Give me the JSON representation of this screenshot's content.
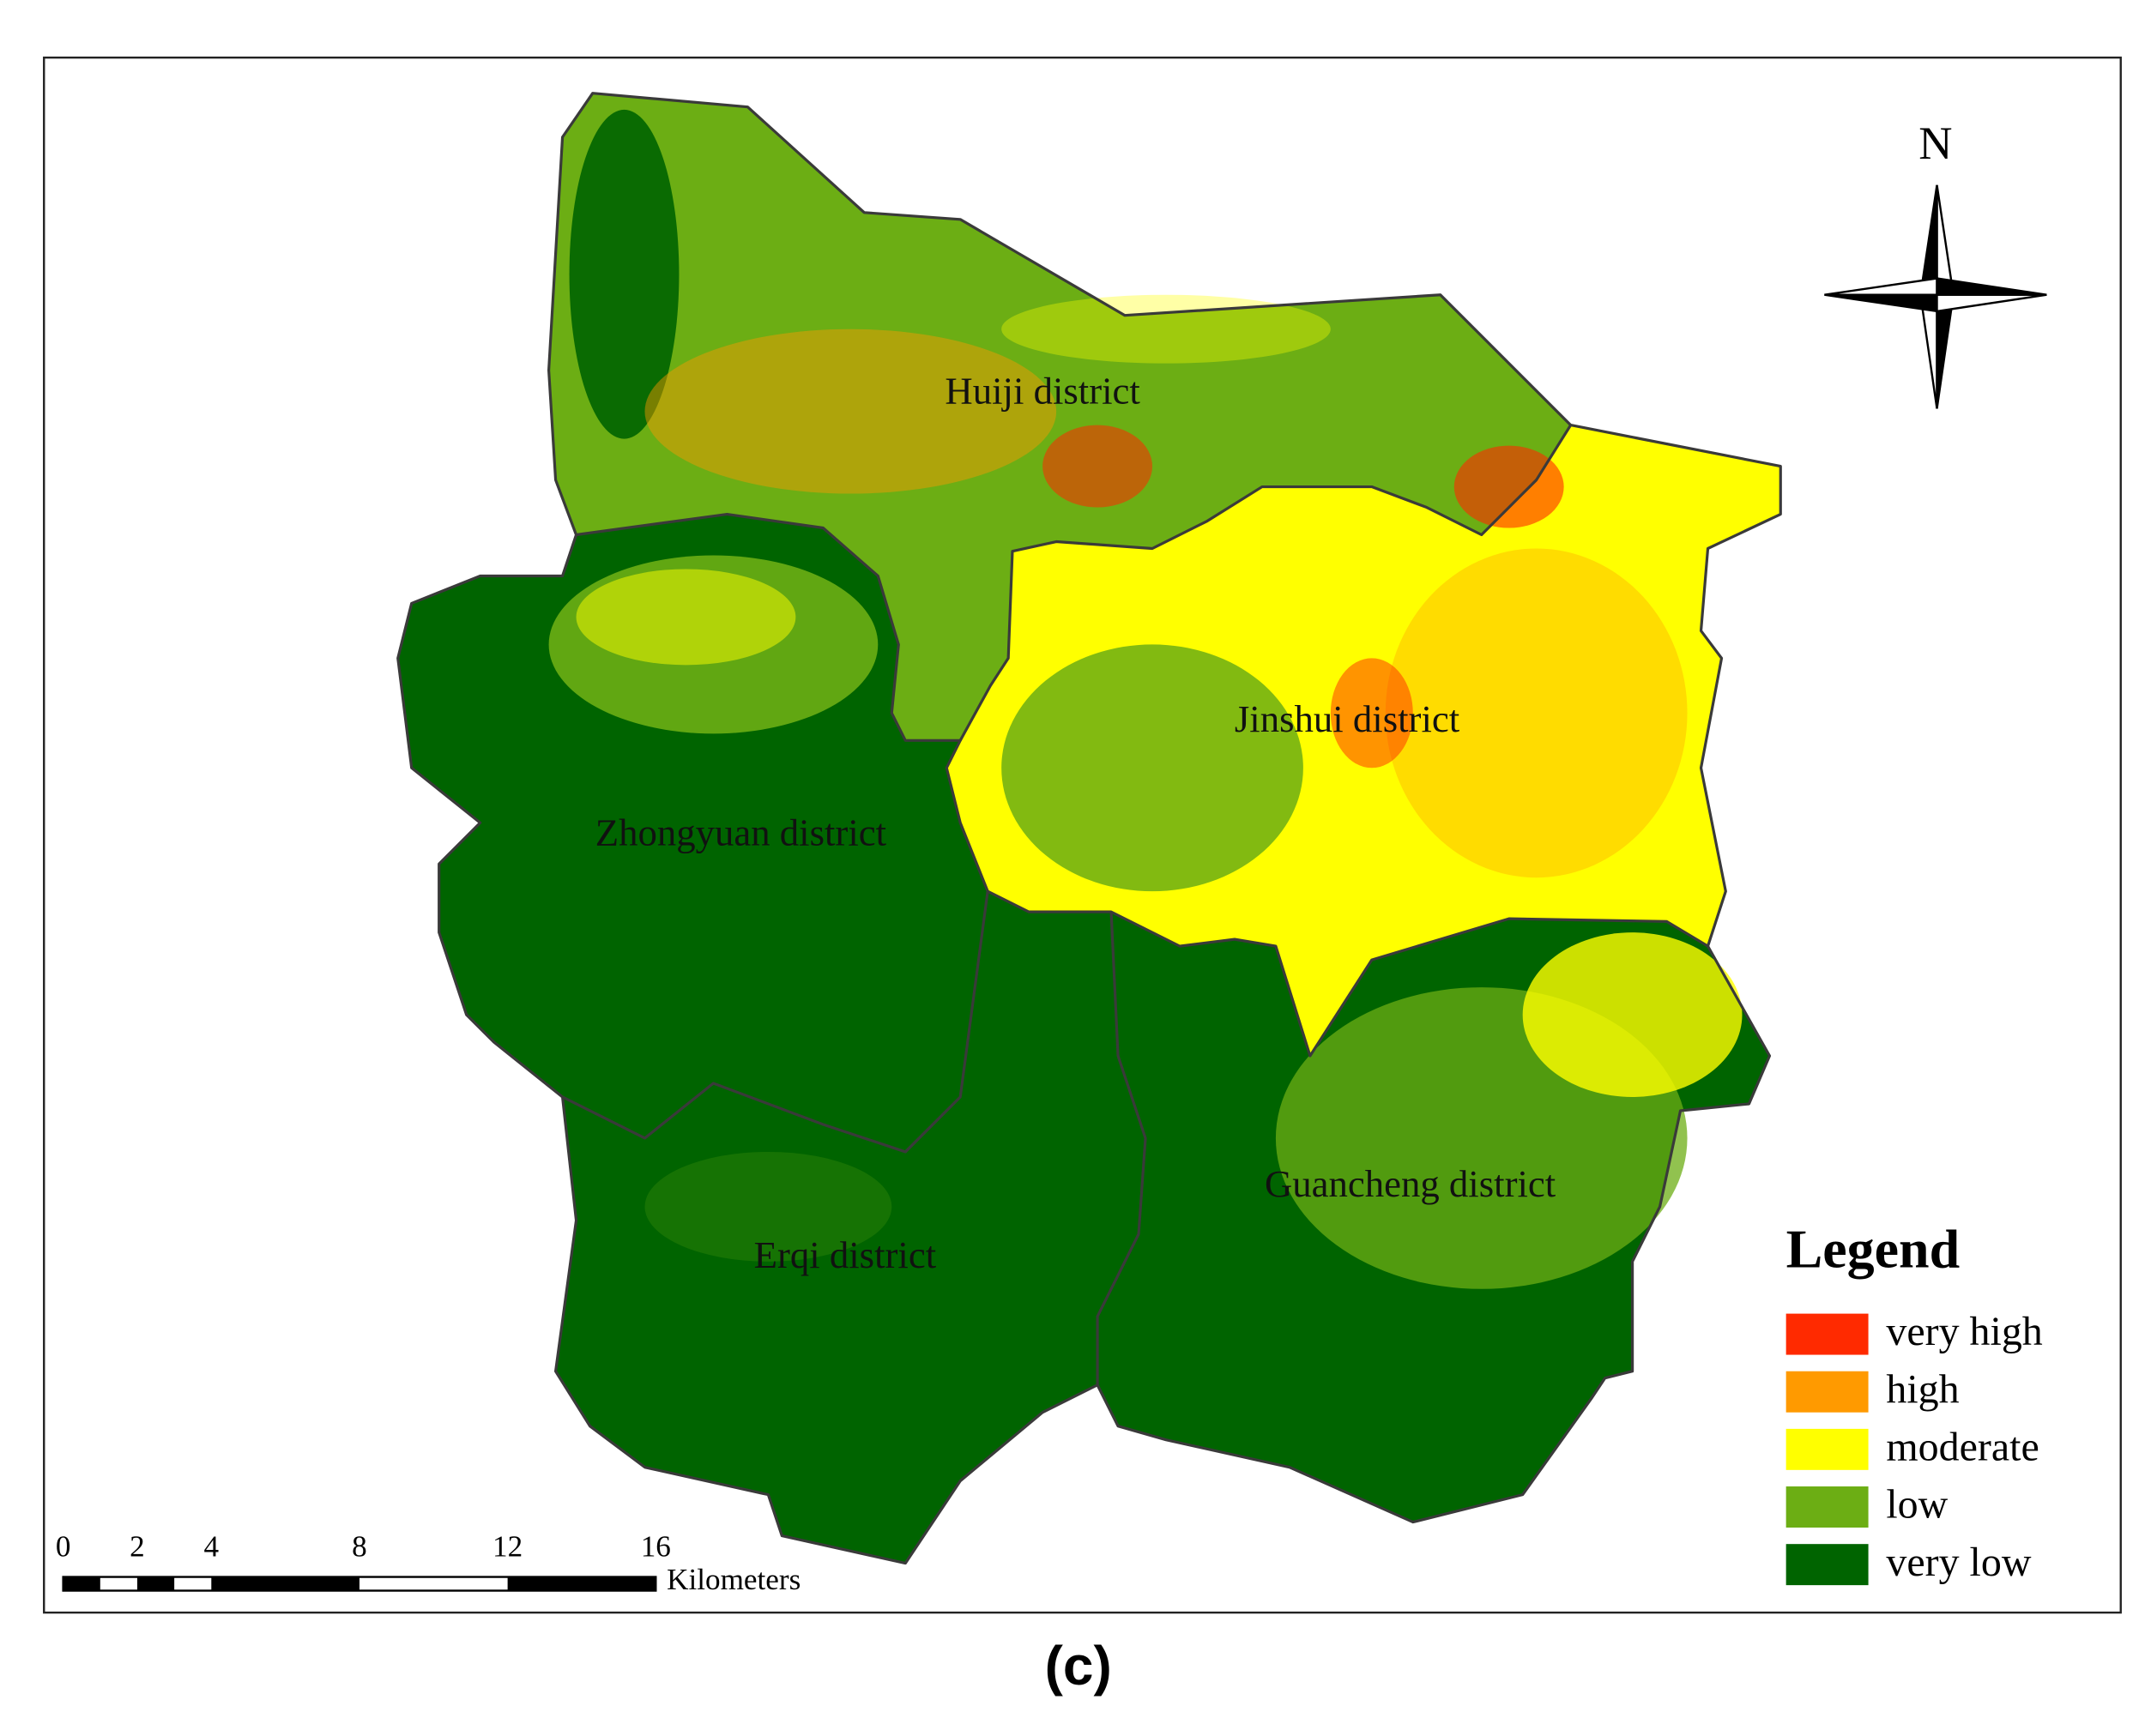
{
  "map": {
    "districts": [
      {
        "name": "Huiji district"
      },
      {
        "name": "Jinshui district"
      },
      {
        "name": "Zhongyuan district"
      },
      {
        "name": "Erqi district"
      },
      {
        "name": "Guancheng district"
      }
    ],
    "north_arrow": "N",
    "legend": {
      "title": "Legend",
      "items": [
        {
          "label": "very high",
          "color": "#ff2a00"
        },
        {
          "label": "high",
          "color": "#ff9a00"
        },
        {
          "label": "moderate",
          "color": "#ffff00"
        },
        {
          "label": "low",
          "color": "#6cae14"
        },
        {
          "label": "very low",
          "color": "#006400"
        }
      ]
    },
    "scale_bar": {
      "ticks": [
        0,
        2,
        4,
        8,
        12,
        16
      ],
      "unit": "Kilometers"
    }
  },
  "caption": "(c)"
}
